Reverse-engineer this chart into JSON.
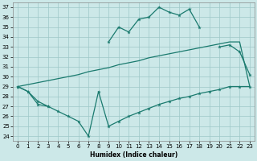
{
  "xlabel": "Humidex (Indice chaleur)",
  "bg_color": "#cce8e8",
  "line_color": "#1a7a6e",
  "grid_color": "#9ec8c8",
  "xlim": [
    -0.5,
    23.5
  ],
  "ylim": [
    23.5,
    37.5
  ],
  "yticks": [
    24,
    25,
    26,
    27,
    28,
    29,
    30,
    31,
    32,
    33,
    34,
    35,
    36,
    37
  ],
  "xticks": [
    0,
    1,
    2,
    3,
    4,
    5,
    6,
    7,
    8,
    9,
    10,
    11,
    12,
    13,
    14,
    15,
    16,
    17,
    18,
    19,
    20,
    21,
    22,
    23
  ],
  "top_x": [
    0,
    1,
    2,
    3,
    9,
    10,
    11,
    12,
    13,
    14,
    15,
    16,
    17,
    18,
    20,
    21,
    22,
    23
  ],
  "top_y": [
    29.0,
    28.5,
    27.2,
    27.0,
    33.5,
    35.0,
    34.5,
    35.8,
    36.0,
    37.0,
    36.5,
    36.2,
    36.8,
    35.0,
    33.0,
    33.2,
    32.5,
    30.2
  ],
  "mid_x": [
    0,
    1,
    2,
    3,
    4,
    5,
    6,
    7,
    8,
    9,
    10,
    11,
    12,
    13,
    14,
    15,
    16,
    17,
    18,
    19,
    20,
    21,
    22,
    23
  ],
  "mid_y": [
    29.0,
    29.2,
    29.4,
    29.6,
    29.8,
    30.0,
    30.2,
    30.5,
    30.7,
    30.9,
    31.2,
    31.4,
    31.6,
    31.9,
    32.1,
    32.3,
    32.5,
    32.7,
    32.9,
    33.1,
    33.3,
    33.5,
    33.5,
    29.0
  ],
  "bot_x": [
    0,
    1,
    2,
    3,
    4,
    5,
    6,
    7,
    8,
    9,
    10,
    11,
    12,
    13,
    14,
    15,
    16,
    17,
    18,
    19,
    20,
    21,
    22,
    23
  ],
  "bot_y": [
    29.0,
    28.5,
    27.5,
    27.0,
    26.5,
    26.0,
    25.5,
    24.0,
    28.5,
    25.0,
    25.5,
    26.0,
    26.4,
    26.8,
    27.2,
    27.5,
    27.8,
    28.0,
    28.3,
    28.5,
    28.7,
    29.0,
    29.0,
    29.0
  ]
}
